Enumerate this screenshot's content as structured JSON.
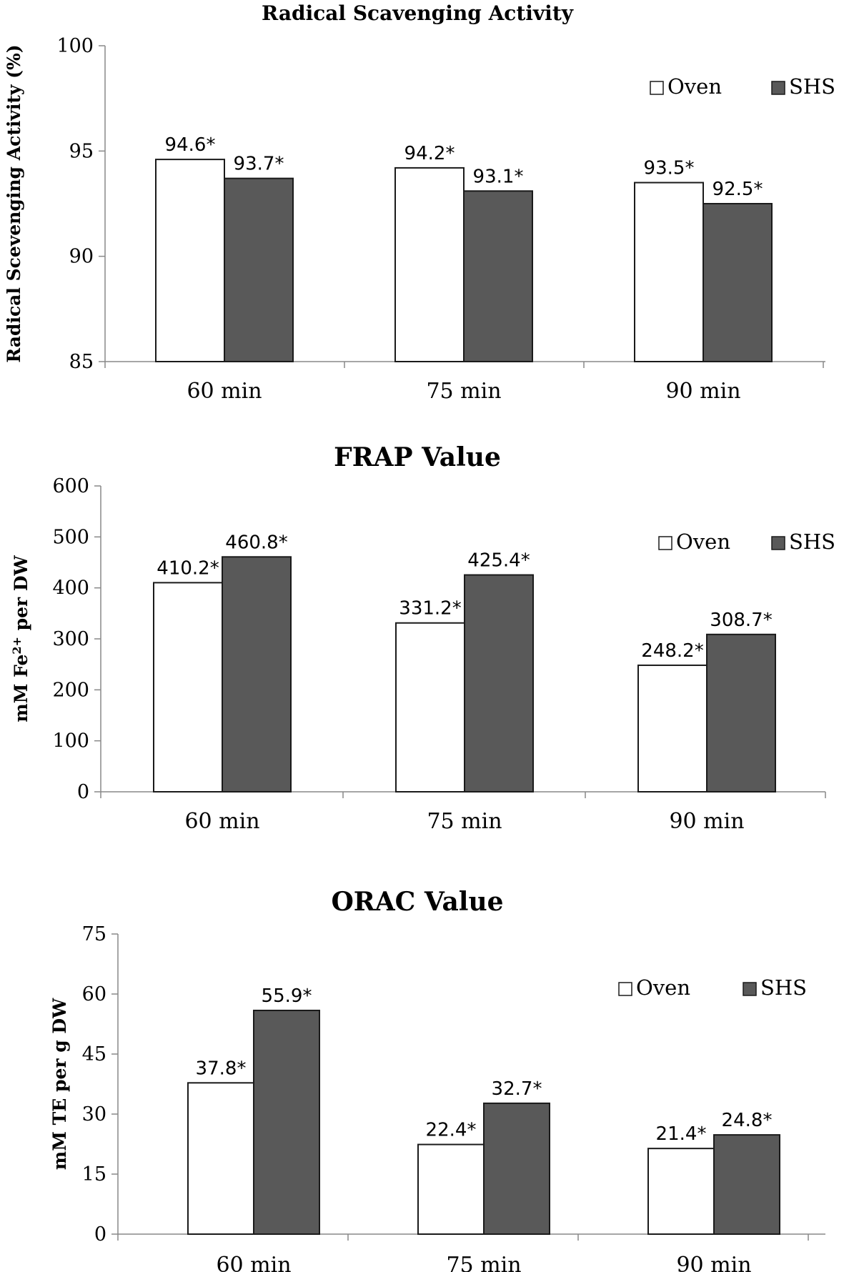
{
  "chart_data": [
    {
      "type": "bar",
      "title": "Radical Scavenging Activity",
      "ylabel": "Radical Scevenging Activity (%)",
      "ylabel_sup": "",
      "ylabel_post": "",
      "xlabel": "",
      "ylim": [
        85,
        100
      ],
      "yticks": [
        85,
        90,
        95,
        100
      ],
      "grid": false,
      "legend": "top-right",
      "categories": [
        "60 min",
        "75 min",
        "90 min"
      ],
      "series": [
        {
          "name": "Oven",
          "color": "#ffffff",
          "values": [
            94.6,
            94.2,
            93.5
          ],
          "labels": [
            "94.6*",
            "94.2*",
            "93.5*"
          ]
        },
        {
          "name": "SHS",
          "color": "#595959",
          "values": [
            93.7,
            93.1,
            92.5
          ],
          "labels": [
            "93.7*",
            "93.1*",
            "92.5*"
          ]
        }
      ]
    },
    {
      "type": "bar",
      "title": "FRAP Value",
      "ylabel": "mM Fe",
      "ylabel_sup": "2+",
      "ylabel_post": " per DW",
      "xlabel": "",
      "ylim": [
        0,
        600
      ],
      "yticks": [
        0,
        100,
        200,
        300,
        400,
        500,
        600
      ],
      "grid": false,
      "legend": "top-right",
      "categories": [
        "60 min",
        "75 min",
        "90 min"
      ],
      "series": [
        {
          "name": "Oven",
          "color": "#ffffff",
          "values": [
            410.2,
            331.2,
            248.2
          ],
          "labels": [
            "410.2*",
            "331.2*",
            "248.2*"
          ]
        },
        {
          "name": "SHS",
          "color": "#595959",
          "values": [
            460.8,
            425.4,
            308.7
          ],
          "labels": [
            "460.8*",
            "425.4*",
            "308.7*"
          ]
        }
      ]
    },
    {
      "type": "bar",
      "title": "ORAC Value",
      "ylabel": "mM TE per g DW",
      "ylabel_sup": "",
      "ylabel_post": "",
      "xlabel": "",
      "ylim": [
        0,
        75
      ],
      "yticks": [
        0,
        15,
        30,
        45,
        60,
        75
      ],
      "grid": false,
      "legend": "top-right",
      "categories": [
        "60 min",
        "75 min",
        "90 min"
      ],
      "series": [
        {
          "name": "Oven",
          "color": "#ffffff",
          "values": [
            37.8,
            22.4,
            21.4
          ],
          "labels": [
            "37.8*",
            "22.4*",
            "21.4*"
          ]
        },
        {
          "name": "SHS",
          "color": "#595959",
          "values": [
            55.9,
            32.7,
            24.8
          ],
          "labels": [
            "55.9*",
            "32.7*",
            "24.8*"
          ]
        }
      ]
    }
  ]
}
